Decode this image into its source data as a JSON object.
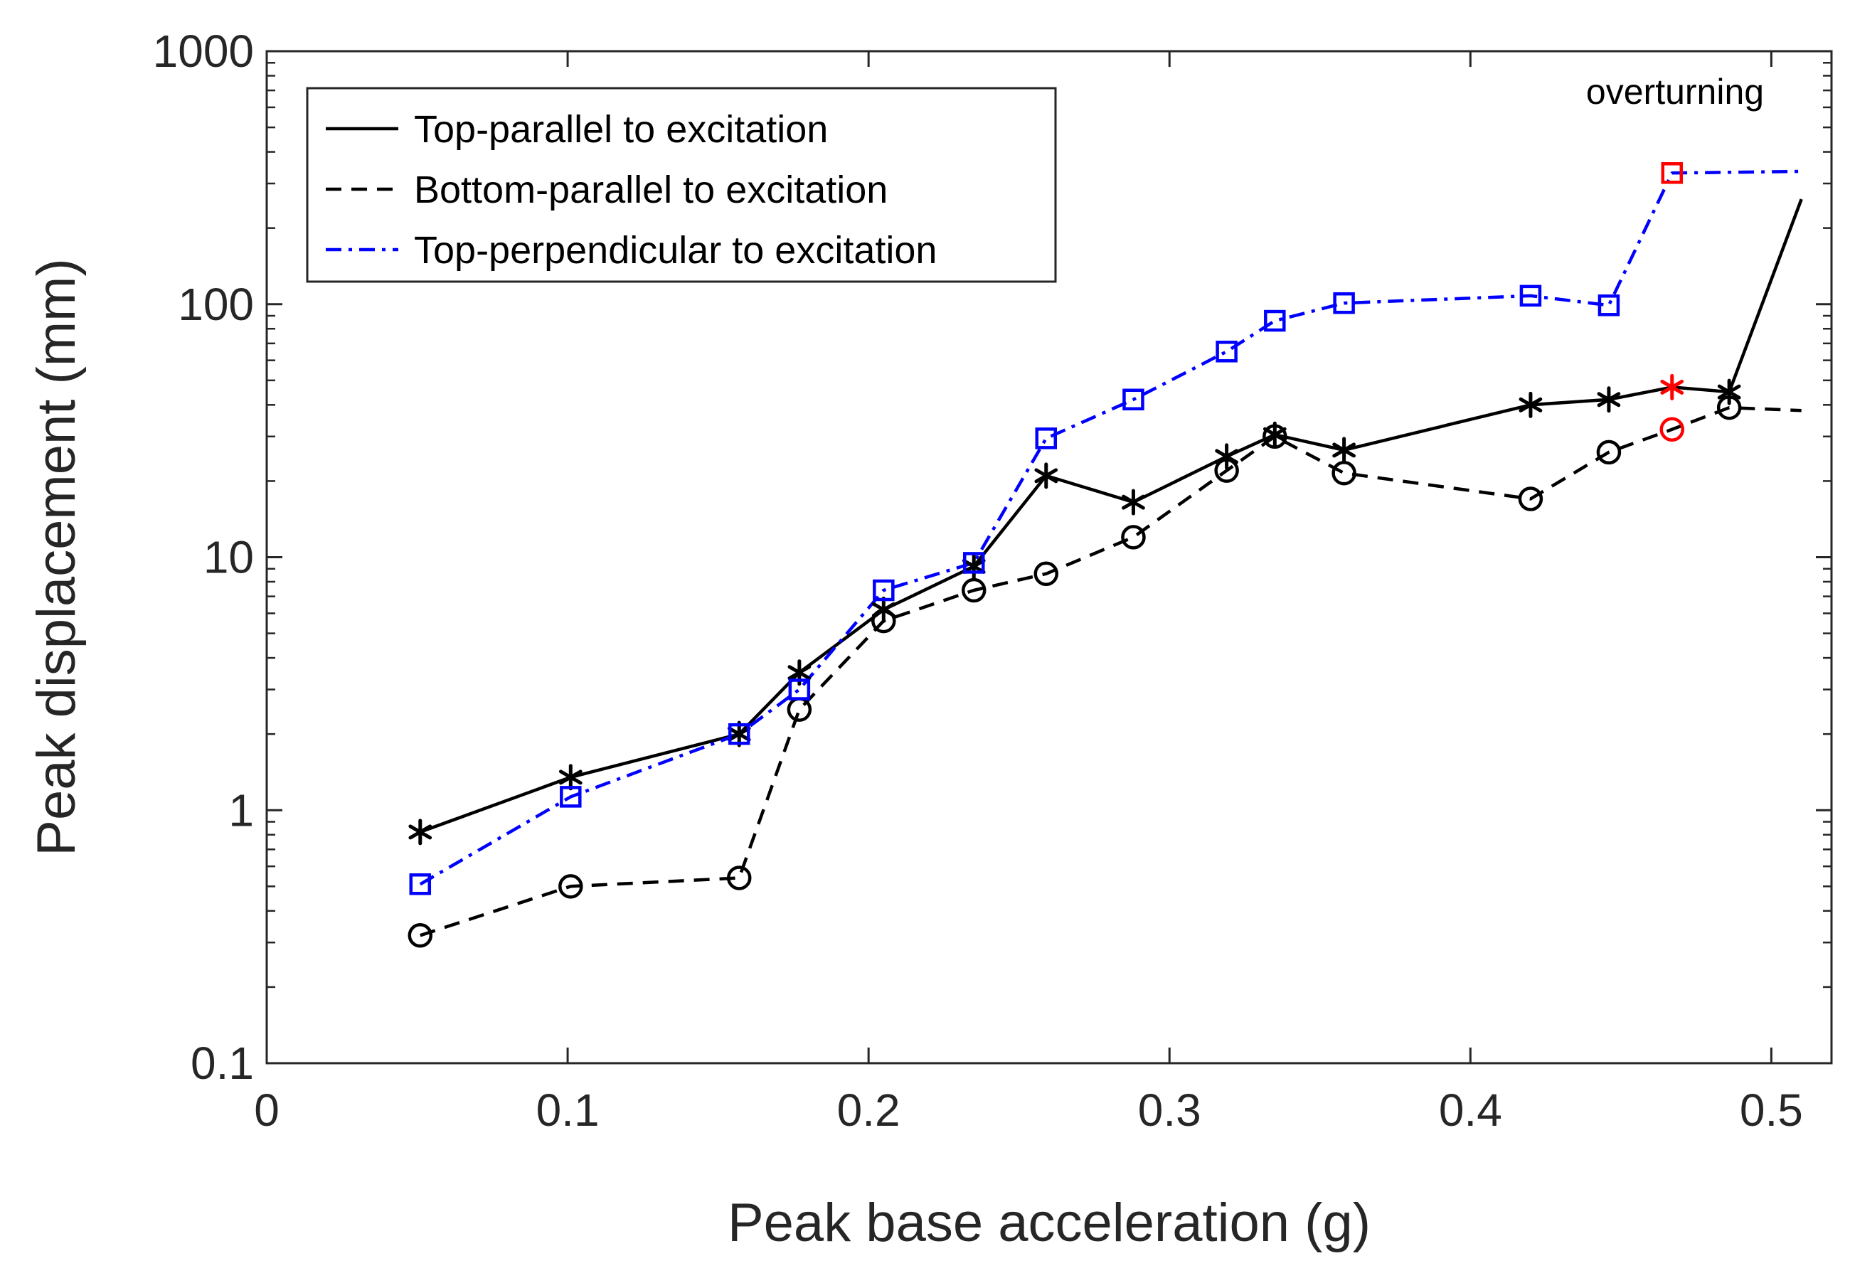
{
  "chart_data": {
    "type": "line",
    "xlabel": "Peak base acceleration (g)",
    "ylabel": "Peak displacement (mm)",
    "xlim": [
      0,
      0.52
    ],
    "ylim": [
      0.1,
      1000
    ],
    "yscale": "log",
    "xticks": [
      0,
      0.1,
      0.2,
      0.3,
      0.4,
      0.5
    ],
    "xtick_labels": [
      "0",
      "0.1",
      "0.2",
      "0.3",
      "0.4",
      "0.5"
    ],
    "yticks": [
      0.1,
      1,
      10,
      100,
      1000
    ],
    "ytick_labels": [
      "0.1",
      "1",
      "10",
      "100",
      "1000"
    ],
    "legend_position": "top-left",
    "series": [
      {
        "name": "Top-parallel to excitation",
        "color": "#000000",
        "dash": "solid",
        "marker": "asterisk",
        "x": [
          0.051,
          0.101,
          0.157,
          0.177,
          0.205,
          0.235,
          0.259,
          0.288,
          0.319,
          0.335,
          0.358,
          0.42,
          0.446,
          0.467,
          0.486,
          0.51
        ],
        "y": [
          0.82,
          1.35,
          2.0,
          3.5,
          6.2,
          9.2,
          21,
          16.5,
          25,
          30.5,
          26.5,
          40,
          42,
          47,
          45,
          260
        ],
        "marker_mask": [
          1,
          1,
          1,
          1,
          1,
          1,
          1,
          1,
          1,
          1,
          1,
          1,
          1,
          1,
          1,
          0
        ],
        "highlight_index": 13
      },
      {
        "name": "Bottom-parallel to excitation",
        "color": "#000000",
        "dash": "dashed",
        "marker": "circle",
        "x": [
          0.051,
          0.101,
          0.157,
          0.177,
          0.205,
          0.235,
          0.259,
          0.288,
          0.319,
          0.335,
          0.358,
          0.42,
          0.446,
          0.467,
          0.486,
          0.51
        ],
        "y": [
          0.32,
          0.5,
          0.54,
          2.5,
          5.6,
          7.4,
          8.6,
          12,
          22,
          30,
          21.5,
          17,
          26,
          32,
          39,
          38
        ],
        "marker_mask": [
          1,
          1,
          1,
          1,
          1,
          1,
          1,
          1,
          1,
          1,
          1,
          1,
          1,
          1,
          1,
          0
        ],
        "highlight_index": 13
      },
      {
        "name": "Top-perpendicular to excitation",
        "color": "#0000ff",
        "dash": "dashdot",
        "marker": "square",
        "x": [
          0.051,
          0.101,
          0.157,
          0.177,
          0.205,
          0.235,
          0.259,
          0.288,
          0.319,
          0.335,
          0.358,
          0.42,
          0.446,
          0.467,
          0.51
        ],
        "y": [
          0.51,
          1.13,
          2.0,
          3.0,
          7.4,
          9.5,
          29.5,
          42,
          65,
          86,
          101,
          108,
          99,
          330,
          335
        ],
        "marker_mask": [
          1,
          1,
          1,
          1,
          1,
          1,
          1,
          1,
          1,
          1,
          1,
          1,
          1,
          1,
          0
        ],
        "highlight_index": 13
      }
    ],
    "highlight_color": "#ff0000",
    "annotations": [
      {
        "text": "overturning",
        "x": 0.468,
        "y": 620
      }
    ]
  }
}
